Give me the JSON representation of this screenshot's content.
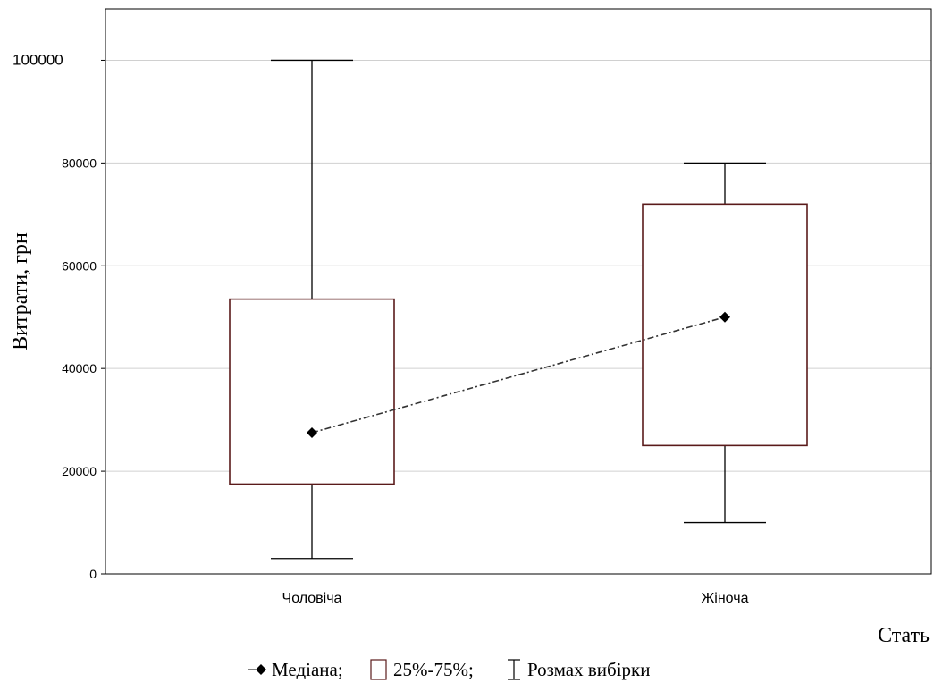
{
  "chart_data": {
    "type": "boxplot",
    "xlabel": "Стать",
    "ylabel": "Витрати, грн",
    "ylim": [
      0,
      110000
    ],
    "yticks": [
      0,
      20000,
      40000,
      60000,
      80000,
      100000
    ],
    "grid": true,
    "categories": [
      "Чоловіча",
      "Жіноча"
    ],
    "boxes": [
      {
        "category": "Чоловіча",
        "median": 27500,
        "q1": 17500,
        "q3": 53500,
        "min": 3000,
        "max": 100000
      },
      {
        "category": "Жіноча",
        "median": 50000,
        "q1": 25000,
        "q3": 72000,
        "min": 10000,
        "max": 80000
      }
    ],
    "legend": {
      "position": "bottom",
      "median_label": "Медіана;",
      "box_label": "25%-75%;",
      "whisker_label": "Розмах вибірки"
    },
    "colors": {
      "box": "#5a1a1a",
      "whisker": "#000000",
      "median_line": "#333333",
      "grid": "#d0d0d0"
    }
  }
}
